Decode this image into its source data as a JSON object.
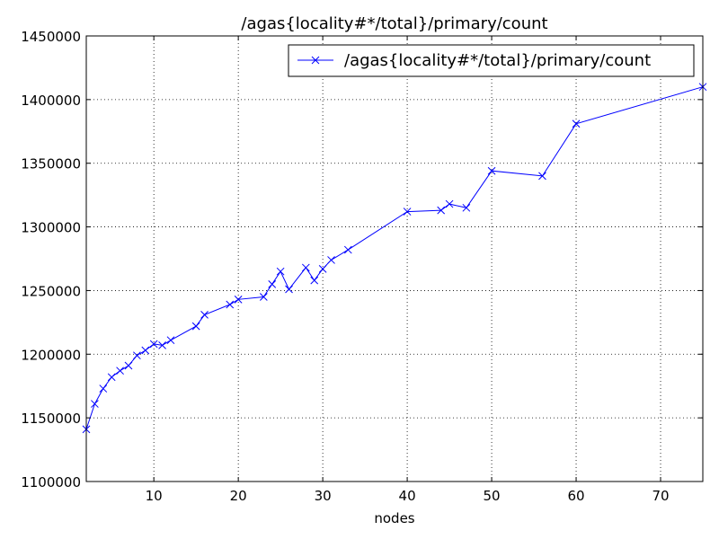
{
  "chart_data": {
    "type": "line",
    "title": "/agas{locality#*/total}/primary/count",
    "xlabel": "nodes",
    "ylabel": "",
    "xlim": [
      2,
      75
    ],
    "ylim": [
      1100000,
      1450000
    ],
    "xticks": [
      10,
      20,
      30,
      40,
      50,
      60,
      70
    ],
    "yticks": [
      1100000,
      1150000,
      1200000,
      1250000,
      1300000,
      1350000,
      1400000,
      1450000
    ],
    "grid": true,
    "legend_position": "top-right",
    "series": [
      {
        "name": "/agas{locality#*/total}/primary/count",
        "color": "#0000ff",
        "marker": "x",
        "x": [
          2,
          3,
          4,
          5,
          6,
          7,
          8,
          9,
          10,
          11,
          12,
          15,
          16,
          19,
          20,
          23,
          24,
          25,
          26,
          28,
          29,
          30,
          31,
          33,
          40,
          44,
          45,
          47,
          50,
          56,
          60,
          75
        ],
        "y": [
          1141000,
          1161000,
          1173000,
          1182000,
          1187000,
          1191000,
          1199000,
          1203000,
          1208000,
          1207000,
          1211000,
          1222000,
          1231000,
          1239000,
          1243000,
          1245000,
          1255000,
          1265000,
          1251000,
          1268000,
          1258000,
          1267000,
          1274000,
          1282000,
          1312000,
          1313000,
          1318000,
          1315000,
          1344000,
          1340000,
          1381000,
          1410000
        ]
      }
    ]
  }
}
